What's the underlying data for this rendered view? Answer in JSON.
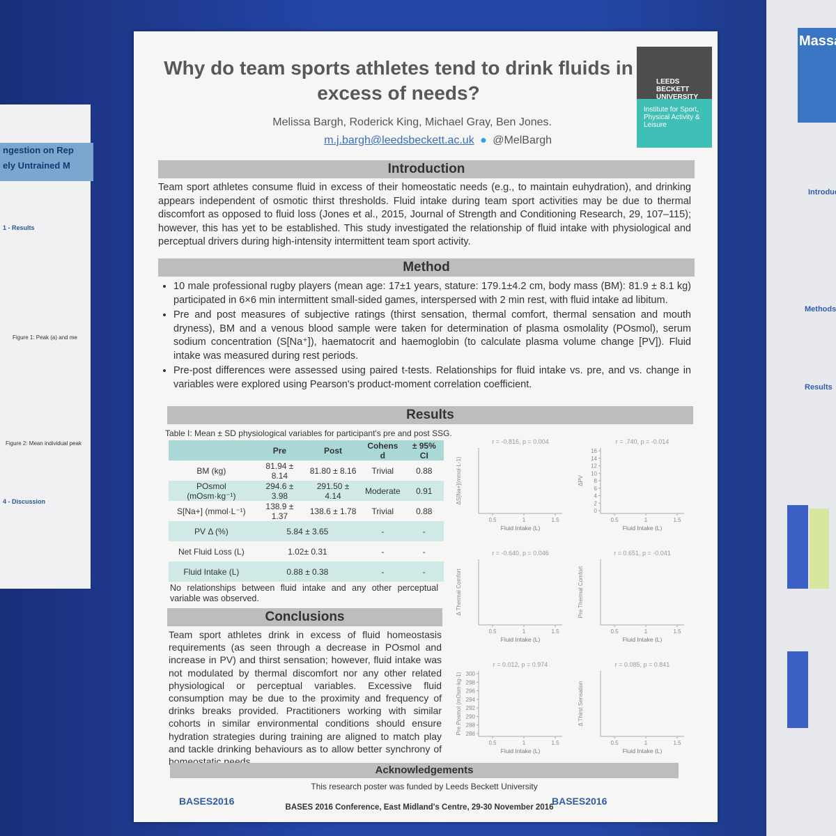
{
  "poster": {
    "title": "Why do team sports athletes tend to drink fluids in excess of needs?",
    "authors": "Melissa Bargh, Roderick King, Michael Gray, Ben Jones.",
    "email": "m.j.bargh@leedsbeckett.ac.uk",
    "twitter": "@MelBargh",
    "institution": {
      "name": "LEEDS BECKETT UNIVERSITY",
      "department": "Institute for Sport, Physical Activity & Leisure"
    },
    "introduction": {
      "heading": "Introduction",
      "text": "Team sport athletes consume fluid in excess of their homeostatic needs (e.g., to maintain euhydration), and drinking appears independent of osmotic thirst thresholds. Fluid intake during team sport activities may be due to thermal discomfort as opposed to fluid loss (Jones et al., 2015, Journal of Strength and Conditioning Research, 29, 107–115); however, this has yet to be established. This study investigated the relationship of fluid intake with physiological and perceptual drivers during high-intensity intermittent team sport activity."
    },
    "method": {
      "heading": "Method",
      "bullets": [
        "10 male professional rugby players (mean age: 17±1 years, stature: 179.1±4.2 cm, body mass (BM): 81.9 ± 8.1 kg) participated in 6×6 min intermittent small-sided games, interspersed with 2 min rest, with fluid intake ad libitum.",
        "Pre and post measures of subjective ratings (thirst sensation, thermal comfort, thermal sensation and mouth dryness), BM and a venous blood sample were taken for determination of plasma osmolality (POsmol), serum sodium concentration (S[Na⁺]), haematocrit and haemoglobin (to calculate plasma volume change [PV]). Fluid intake was measured during rest periods.",
        "Pre-post differences were assessed using paired t-tests. Relationships for fluid intake vs. pre, and vs. change in variables were explored using Pearson's product-moment correlation coefficient."
      ]
    },
    "results": {
      "heading": "Results",
      "table_caption": "Table I: Mean ± SD physiological variables for participant's pre and post SSG.",
      "table": {
        "header": [
          "Pre",
          "Post",
          "Cohens d",
          "± 95% CI"
        ],
        "rows": [
          [
            "BM (kg)",
            "81.94 ± 8.14",
            "81.80 ± 8.16",
            "Trivial",
            "0.88"
          ],
          [
            "POsmol (mOsm·kg⁻¹)",
            "294.6 ± 3.98",
            "291.50 ± 4.14",
            "Moderate",
            "0.91"
          ],
          [
            "S[Na+] (mmol·L⁻¹)",
            "138.9 ± 1.37",
            "138.6 ± 1.78",
            "Trivial",
            "0.88"
          ],
          [
            "PV Δ (%)",
            "5.84 ± 3.65",
            "-",
            "-"
          ],
          [
            "Net Fluid Loss (L)",
            "1.02± 0.31",
            "-",
            "-"
          ],
          [
            "Fluid Intake (L)",
            "0.88 ± 0.38",
            "-",
            "-"
          ]
        ]
      },
      "note": "No relationships between fluid intake and any other perceptual variable was observed.",
      "plots": [
        {
          "stat": "r = -0.816, p = 0.004",
          "y_label": "ΔS[Na+](mmol·L-1)",
          "x_label": "Fluid Intake (L)",
          "x_ticks": [
            0.5,
            1,
            1.5
          ]
        },
        {
          "stat": "r = .740, p = -0.014",
          "y_label": "ΔPV",
          "x_label": "Fluid Intake (L)",
          "x_ticks": [
            0.5,
            1,
            1.5
          ],
          "y_ticks": [
            0,
            2,
            4,
            6,
            8,
            10,
            12,
            14,
            16
          ]
        },
        {
          "stat": "r = -0.640, p = 0.046",
          "y_label": "Δ Thermal Comfort",
          "x_label": "Fluid Intake (L)",
          "x_ticks": [
            0.5,
            1,
            1.5
          ]
        },
        {
          "stat": "r = 0.651, p = -0.041",
          "y_label": "Pre Thermal Comfort",
          "x_label": "Fluid Intake (L)",
          "x_ticks": [
            0.5,
            1,
            1.5
          ]
        },
        {
          "stat": "r = 0.012, p = 0.974",
          "y_label": "Pre Posmol (mOsm·kg-1)",
          "x_label": "Fluid Intake (L)",
          "x_ticks": [
            0.5,
            1,
            1.5
          ],
          "y_ticks": [
            286,
            288,
            290,
            292,
            294,
            296,
            298,
            300
          ]
        },
        {
          "stat": "r = 0.085, p = 0.841",
          "y_label": "Δ Thirst Sensation",
          "x_label": "Fluid Intake (L)",
          "x_ticks": [
            0.5,
            1,
            1.5
          ]
        }
      ]
    },
    "conclusions": {
      "heading": "Conclusions",
      "text": "Team sport athletes drink in excess of fluid homeostasis requirements (as seen through a decrease in POsmol and increase in PV) and thirst sensation; however, fluid intake was not modulated by thermal discomfort nor any other related physiological or perceptual variables. Excessive fluid consumption may be due to the proximity and frequency of drinks breaks provided. Practitioners working with similar cohorts in similar environmental conditions should ensure hydration strategies during training are aligned to match play and tackle drinking behaviours as to allow better synchrony of homeostatic needs."
    },
    "acknowledgements": {
      "heading": "Acknowledgements",
      "text": "This research poster was funded by Leeds Beckett University"
    },
    "footer": {
      "logo": "BASES2016",
      "conference": "BASES 2016 Conference, East Midland's Centre, 29-30 November 2016"
    }
  },
  "left_poster": {
    "title_lines": [
      "ngestion on Rep",
      "ely Untrained M"
    ],
    "headings": [
      "1 - Results",
      "4 - Discussion"
    ],
    "figure_captions": [
      "Figure 1: Peak (a) and me",
      "Figure 2: Mean individual peak"
    ]
  },
  "right_poster": {
    "title": "Massag",
    "headings": [
      "Introduction",
      "Methods",
      "Results"
    ]
  }
}
